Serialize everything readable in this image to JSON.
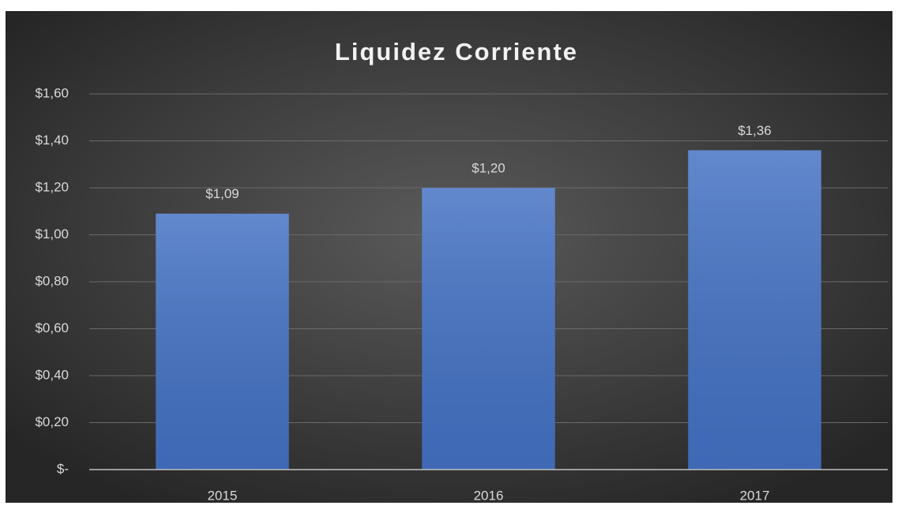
{
  "chart_data": {
    "type": "bar",
    "title": "Liquidez Corriente",
    "categories": [
      "2015",
      "2016",
      "2017"
    ],
    "values": [
      1.09,
      1.2,
      1.36
    ],
    "value_labels": [
      "$1,09",
      "$1,20",
      "$1,36"
    ],
    "color": "#4472c4",
    "ylim": [
      0,
      1.6
    ],
    "yticks": [
      {
        "value": 0,
        "label": "$-"
      },
      {
        "value": 0.2,
        "label": "$0,20"
      },
      {
        "value": 0.4,
        "label": "$0,40"
      },
      {
        "value": 0.6,
        "label": "$0,60"
      },
      {
        "value": 0.8,
        "label": "$0,80"
      },
      {
        "value": 1.0,
        "label": "$1,00"
      },
      {
        "value": 1.2,
        "label": "$1,20"
      },
      {
        "value": 1.4,
        "label": "$1,40"
      },
      {
        "value": 1.6,
        "label": "$1,60"
      }
    ],
    "grid": true
  }
}
